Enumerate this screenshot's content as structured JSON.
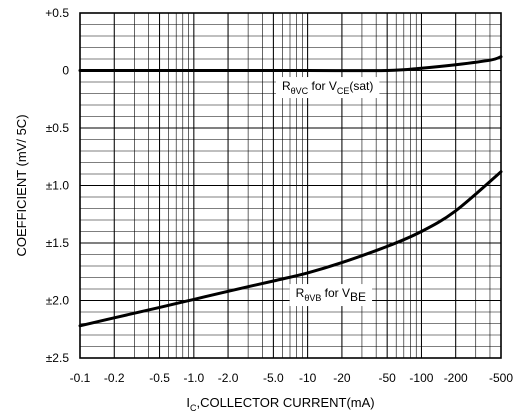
{
  "chart_data": {
    "type": "line",
    "title": "",
    "xlabel": {
      "main": "I",
      "sub": "C",
      "rest": ",COLLECTOR CURRENT(mA)"
    },
    "ylabel": "COEFFICIENT (mV/ 5C)",
    "x_scale": "log",
    "xlim": [
      0.1,
      500
    ],
    "ylim": [
      -2.5,
      0.5
    ],
    "grid": true,
    "x_ticks": [
      {
        "value": 0.1,
        "label": "-0.1"
      },
      {
        "value": 0.2,
        "label": "-0.2"
      },
      {
        "value": 0.5,
        "label": "-0.5"
      },
      {
        "value": 1.0,
        "label": "-1.0"
      },
      {
        "value": 2.0,
        "label": "-2.0"
      },
      {
        "value": 5.0,
        "label": "-5.0"
      },
      {
        "value": 10,
        "label": "-10"
      },
      {
        "value": 20,
        "label": "-20"
      },
      {
        "value": 50,
        "label": "-50"
      },
      {
        "value": 100,
        "label": "-100"
      },
      {
        "value": 200,
        "label": "-200"
      },
      {
        "value": 500,
        "label": "-500"
      }
    ],
    "y_ticks": [
      {
        "value": 0.5,
        "label": "+0.5"
      },
      {
        "value": 0.0,
        "label": "0"
      },
      {
        "value": -0.5,
        "label": "±0.5"
      },
      {
        "value": -1.0,
        "label": "±1.0"
      },
      {
        "value": -1.5,
        "label": "±1.5"
      },
      {
        "value": -2.0,
        "label": "±2.0"
      },
      {
        "value": -2.5,
        "label": "±2.5"
      }
    ],
    "series": [
      {
        "label_parts": [
          {
            "t": "R",
            "style": "main"
          },
          {
            "t": "θVC",
            "style": "sub"
          },
          {
            "t": " for V",
            "style": "main"
          },
          {
            "t": "CE",
            "style": "sub"
          },
          {
            "t": "(sat)",
            "style": "main"
          }
        ],
        "label_anchor": {
          "x": 15,
          "y": -0.17
        },
        "points": [
          {
            "x": 0.1,
            "y": 0.0
          },
          {
            "x": 1.0,
            "y": 0.0
          },
          {
            "x": 10,
            "y": 0.0
          },
          {
            "x": 50,
            "y": 0.0
          },
          {
            "x": 100,
            "y": 0.02
          },
          {
            "x": 200,
            "y": 0.05
          },
          {
            "x": 400,
            "y": 0.09
          },
          {
            "x": 500,
            "y": 0.12
          }
        ]
      },
      {
        "label_parts": [
          {
            "t": "R",
            "style": "main"
          },
          {
            "t": "θVB",
            "style": "sub"
          },
          {
            "t": " for V",
            "style": "main"
          },
          {
            "t": "BE",
            "style": "main-sub"
          }
        ],
        "label_anchor": {
          "x": 16,
          "y": -1.97
        },
        "points": [
          {
            "x": 0.1,
            "y": -2.22
          },
          {
            "x": 0.2,
            "y": -2.15
          },
          {
            "x": 0.5,
            "y": -2.06
          },
          {
            "x": 1.0,
            "y": -1.99
          },
          {
            "x": 2.0,
            "y": -1.92
          },
          {
            "x": 5.0,
            "y": -1.83
          },
          {
            "x": 10,
            "y": -1.76
          },
          {
            "x": 20,
            "y": -1.67
          },
          {
            "x": 50,
            "y": -1.53
          },
          {
            "x": 100,
            "y": -1.4
          },
          {
            "x": 200,
            "y": -1.22
          },
          {
            "x": 500,
            "y": -0.88
          }
        ]
      }
    ]
  }
}
